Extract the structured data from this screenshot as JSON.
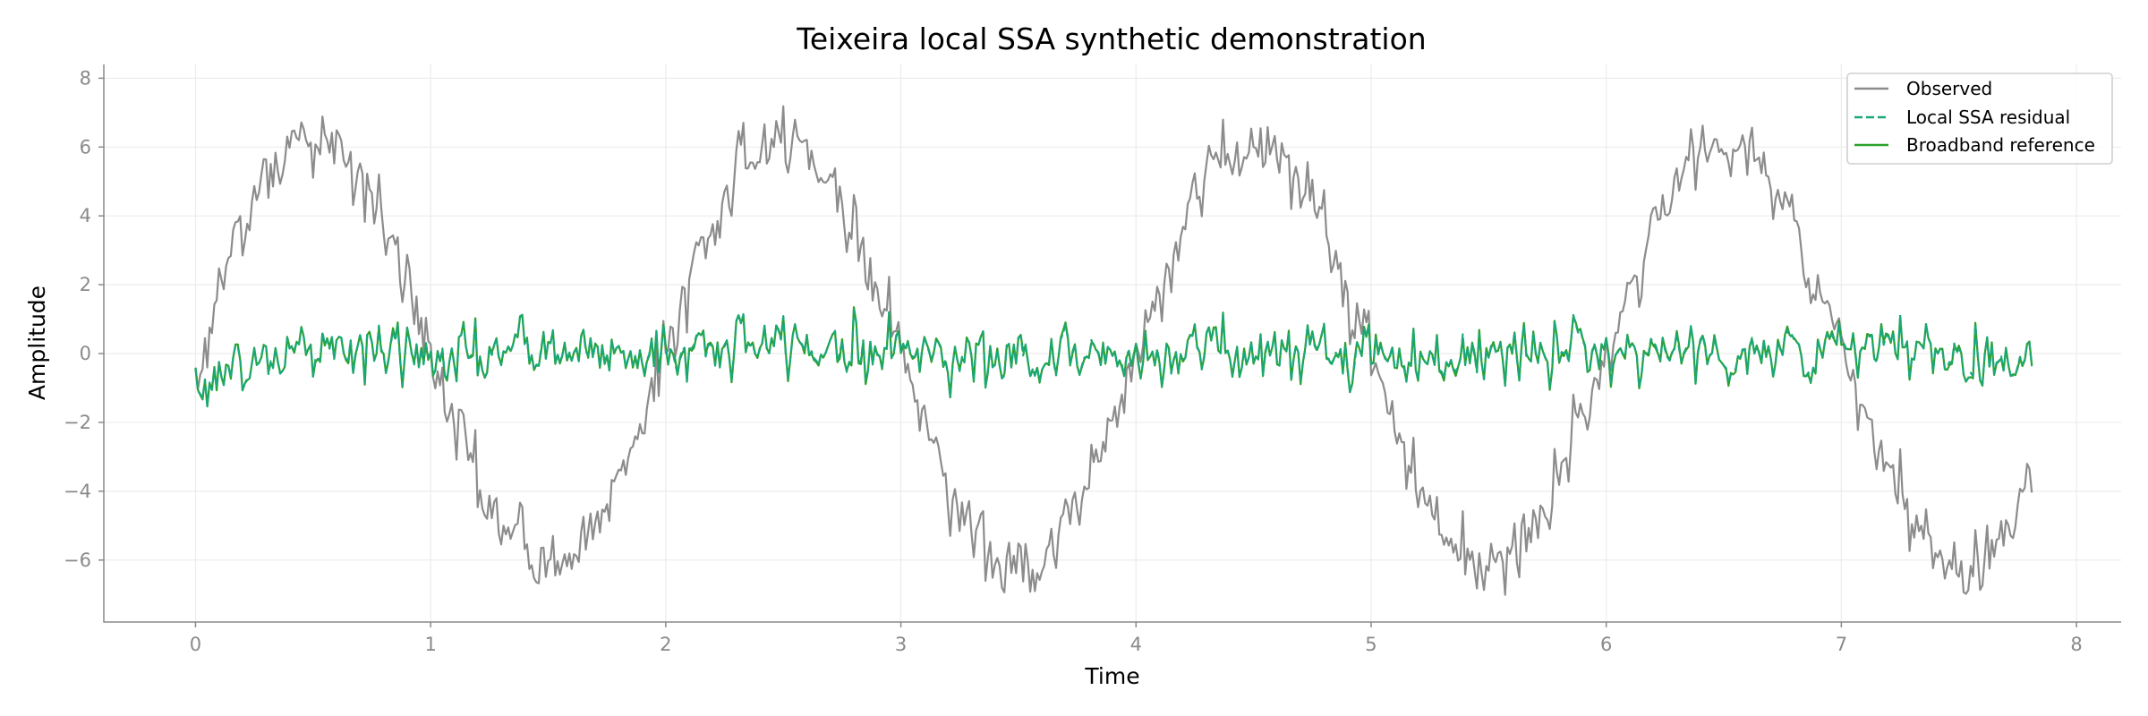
{
  "chart_data": {
    "type": "line",
    "title": "Teixeira local SSA synthetic demonstration",
    "xlabel": "Time",
    "ylabel": "Amplitude",
    "xlim": [
      -0.39,
      8.19
    ],
    "ylim": [
      -7.8,
      8.4
    ],
    "xticks": [
      0,
      1,
      2,
      3,
      4,
      5,
      6,
      7,
      8
    ],
    "yticks": [
      -6,
      -4,
      -2,
      0,
      2,
      4,
      6,
      8
    ],
    "x_tick_labels": [
      "0",
      "1",
      "2",
      "3",
      "4",
      "5",
      "6",
      "7",
      "8"
    ],
    "y_tick_labels": [
      "−6",
      "−4",
      "−2",
      "0",
      "2",
      "4",
      "6",
      "8"
    ],
    "grid": true,
    "legend_position": "top-right",
    "x_range": [
      0,
      7.81
    ],
    "sample_step": 0.01,
    "series": [
      {
        "name": "Observed",
        "color": "#8c8c8c",
        "style": "solid",
        "description_values": "sinusoid, period ~2.0, amplitude ~6.2, plus noise",
        "x": [
          0,
          0.1,
          0.2,
          0.3,
          0.4,
          0.5,
          0.6,
          0.7,
          0.8,
          0.9,
          1.0,
          1.1,
          1.2,
          1.3,
          1.4,
          1.5,
          1.6,
          1.7,
          1.8,
          1.9,
          2.0,
          2.1,
          2.2,
          2.3,
          2.4,
          2.5,
          2.6,
          2.7,
          2.8,
          2.9,
          3.0,
          3.1,
          3.2,
          3.3,
          3.4,
          3.5,
          3.6,
          3.7,
          3.8,
          3.9,
          4.0,
          4.1,
          4.2,
          4.3,
          4.4,
          4.5,
          4.6,
          4.7,
          4.8,
          4.9,
          5.0,
          5.1,
          5.2,
          5.3,
          5.4,
          5.5,
          5.6,
          5.7,
          5.8,
          5.9,
          6.0,
          6.1,
          6.2,
          6.3,
          6.4,
          6.5,
          6.6,
          6.7,
          6.8,
          6.9,
          7.0,
          7.1,
          7.2,
          7.3,
          7.4,
          7.5,
          7.6,
          7.7,
          7.8
        ],
        "values": [
          -0.8,
          2.0,
          3.7,
          5.2,
          6.0,
          6.2,
          6.0,
          5.0,
          3.7,
          2.0,
          0.0,
          -1.9,
          -3.6,
          -5.0,
          -5.9,
          -6.2,
          -5.9,
          -5.0,
          -3.6,
          -1.9,
          0.1,
          2.0,
          3.7,
          5.1,
          5.9,
          6.2,
          6.0,
          5.0,
          3.6,
          1.9,
          0.0,
          -2.0,
          -3.6,
          -5.0,
          -5.9,
          -6.2,
          -5.9,
          -5.0,
          -3.7,
          -1.9,
          0.0,
          1.9,
          3.7,
          5.0,
          5.9,
          6.2,
          5.9,
          5.0,
          3.6,
          1.9,
          0.0,
          -2.0,
          -3.7,
          -5.0,
          -5.9,
          -6.2,
          -5.9,
          -5.0,
          -3.6,
          -1.9,
          0.0,
          1.9,
          3.6,
          5.0,
          5.9,
          6.2,
          6.0,
          5.0,
          3.7,
          1.9,
          0.0,
          -1.9,
          -3.6,
          -5.0,
          -5.9,
          -6.2,
          -5.9,
          -5.0,
          -3.7
        ]
      },
      {
        "name": "Local SSA residual",
        "color": "#1aa87a",
        "style": "dashed",
        "description_values": "broadband noise around 0, std ~0.45, range about -1.6 to 1.8",
        "x": [
          0,
          0.5,
          1.0,
          1.5,
          2.0,
          2.5,
          3.0,
          3.5,
          4.0,
          4.5,
          5.0,
          5.5,
          6.0,
          6.5,
          7.0,
          7.5,
          7.8
        ],
        "values": [
          -0.8,
          0.2,
          -0.1,
          0.1,
          0.0,
          0.3,
          0.1,
          -0.1,
          0.0,
          0.1,
          0.0,
          -0.1,
          0.2,
          0.0,
          0.1,
          0.0,
          -0.2
        ]
      },
      {
        "name": "Broadband reference",
        "color": "#2ca02c",
        "style": "solid",
        "description_values": "broadband noise around 0, std ~0.45, range about -1.6 to 1.8",
        "x": [
          0,
          0.5,
          1.0,
          1.5,
          2.0,
          2.5,
          3.0,
          3.5,
          4.0,
          4.5,
          5.0,
          5.5,
          6.0,
          6.5,
          7.0,
          7.5,
          7.8
        ],
        "values": [
          -0.8,
          0.2,
          -0.1,
          0.1,
          0.0,
          0.3,
          0.1,
          -0.1,
          0.0,
          0.1,
          0.0,
          -0.1,
          0.2,
          0.0,
          0.1,
          0.0,
          -0.2
        ]
      }
    ]
  }
}
